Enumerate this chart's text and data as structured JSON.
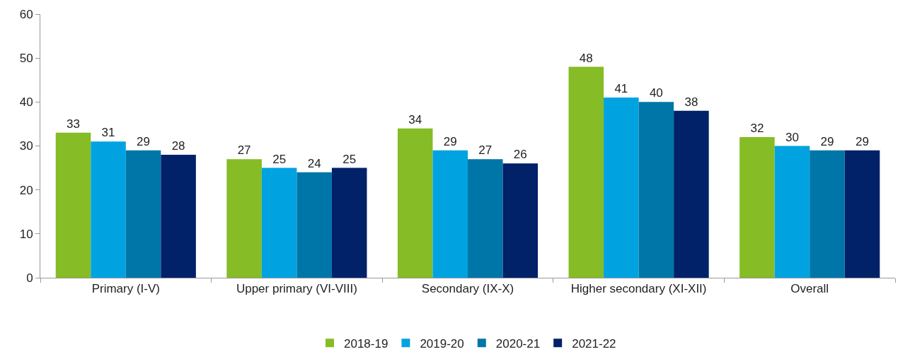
{
  "chart_data": {
    "type": "bar",
    "categories": [
      "Primary (I-V)",
      "Upper primary (VI-VIII)",
      "Secondary (IX-X)",
      "Higher secondary (XI-XII)",
      "Overall"
    ],
    "series": [
      {
        "name": "2018-19",
        "color": "#86bc25",
        "values": [
          33,
          27,
          34,
          48,
          32
        ]
      },
      {
        "name": "2019-20",
        "color": "#00a3e0",
        "values": [
          31,
          25,
          29,
          41,
          30
        ]
      },
      {
        "name": "2020-21",
        "color": "#0076a8",
        "values": [
          29,
          24,
          27,
          40,
          29
        ]
      },
      {
        "name": "2021-22",
        "color": "#012169",
        "values": [
          28,
          25,
          26,
          38,
          29
        ]
      }
    ],
    "ylim": [
      0,
      60
    ],
    "yticks": [
      0,
      10,
      20,
      30,
      40,
      50,
      60
    ],
    "grid": false,
    "legend": "bottom",
    "data_labels": true
  }
}
